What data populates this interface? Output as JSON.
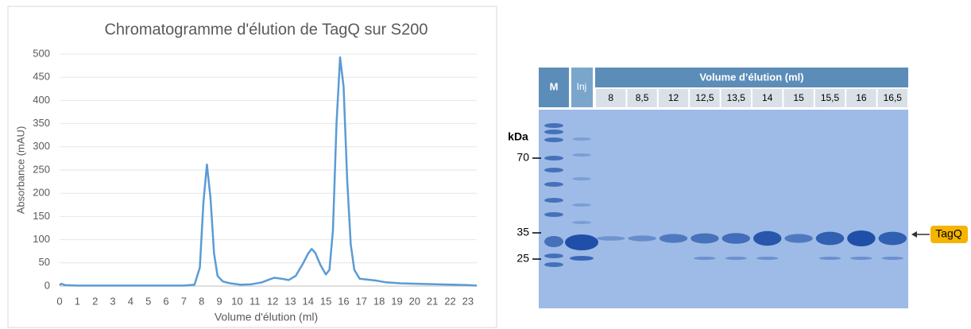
{
  "chart_data": {
    "type": "line",
    "title": "Chromatogramme d'élution de TagQ sur S200",
    "x_label": "Volume d'élution (ml)",
    "y_label": "Absorbance (mAU)",
    "x": [
      0,
      0.1,
      0.3,
      1,
      3,
      5,
      7,
      7.6,
      7.9,
      8.1,
      8.3,
      8.5,
      8.7,
      8.9,
      9.2,
      9.6,
      10.2,
      10.8,
      11.4,
      11.8,
      12.1,
      12.5,
      12.9,
      13.3,
      13.7,
      14.0,
      14.2,
      14.4,
      14.7,
      15.0,
      15.2,
      15.4,
      15.6,
      15.8,
      16.0,
      16.2,
      16.4,
      16.6,
      16.9,
      17.3,
      17.8,
      18.4,
      19.2,
      20.2,
      21.2,
      22.2,
      23.0,
      23.5
    ],
    "values": [
      2,
      5,
      2,
      1,
      1,
      1,
      1,
      3,
      40,
      180,
      262,
      190,
      70,
      22,
      10,
      6,
      3,
      4,
      8,
      14,
      18,
      16,
      13,
      22,
      48,
      70,
      80,
      72,
      45,
      25,
      35,
      120,
      350,
      493,
      430,
      230,
      90,
      35,
      16,
      14,
      12,
      8,
      6,
      5,
      4,
      3,
      2,
      1
    ],
    "color": "#5b9bd5",
    "xlim": [
      0,
      23.5
    ],
    "ylim": [
      0,
      500
    ],
    "xticks": [
      0,
      1,
      2,
      3,
      4,
      5,
      6,
      7,
      8,
      9,
      10,
      11,
      12,
      13,
      14,
      15,
      16,
      17,
      18,
      19,
      20,
      21,
      22,
      23
    ],
    "yticks": [
      0,
      50,
      100,
      150,
      200,
      250,
      300,
      350,
      400,
      450,
      500
    ],
    "grid": true
  },
  "gel": {
    "marker_lane": "M",
    "injection_lane": "Inj",
    "header": "Volume d’élution (ml)",
    "lanes": [
      "8",
      "8,5",
      "12",
      "12,5",
      "13,5",
      "14",
      "15",
      "15,5",
      "16",
      "16,5"
    ],
    "unit": "kDa",
    "markers": [
      "70",
      "35",
      "25"
    ],
    "protein": "TagQ"
  }
}
